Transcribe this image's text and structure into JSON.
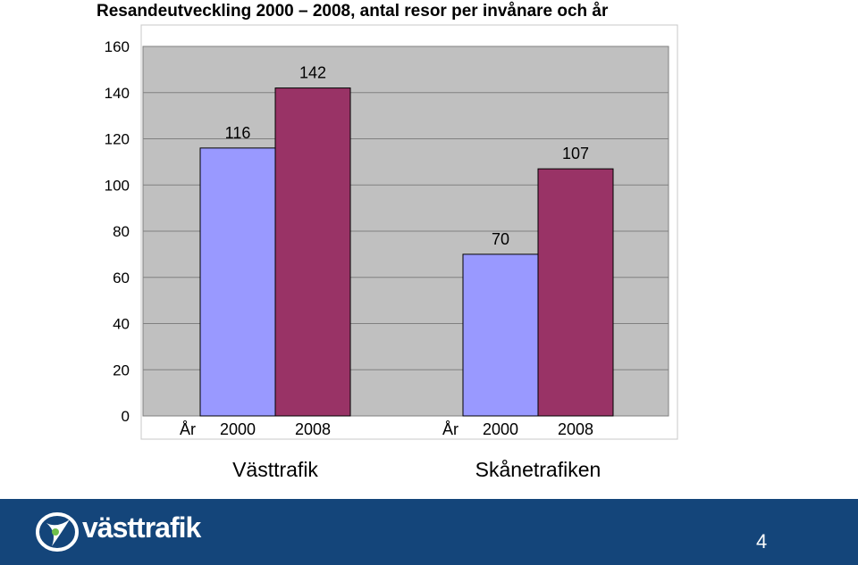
{
  "title": "Resandeutveckling 2000 – 2008, antal resor per invånare och år",
  "chart_data": {
    "type": "bar",
    "title": "Resandeutveckling 2000 – 2008, antal resor per invånare och år",
    "ylim": [
      0,
      160
    ],
    "yticks": [
      0,
      20,
      40,
      60,
      80,
      100,
      120,
      140,
      160
    ],
    "grid": true,
    "groups": [
      {
        "name": "Västtrafik",
        "axis_prefix": "År",
        "bars": [
          {
            "label": "2000",
            "value": 116,
            "color": "#9999ff"
          },
          {
            "label": "2008",
            "value": 142,
            "color": "#993366"
          }
        ]
      },
      {
        "name": "Skånetrafiken",
        "axis_prefix": "År",
        "bars": [
          {
            "label": "2000",
            "value": 70,
            "color": "#9999ff"
          },
          {
            "label": "2008",
            "value": 107,
            "color": "#993366"
          }
        ]
      }
    ],
    "plot_background": "#c0c0c0"
  },
  "footer": {
    "logo_text": "västtrafik",
    "page_number": "4",
    "background": "#14457a"
  }
}
